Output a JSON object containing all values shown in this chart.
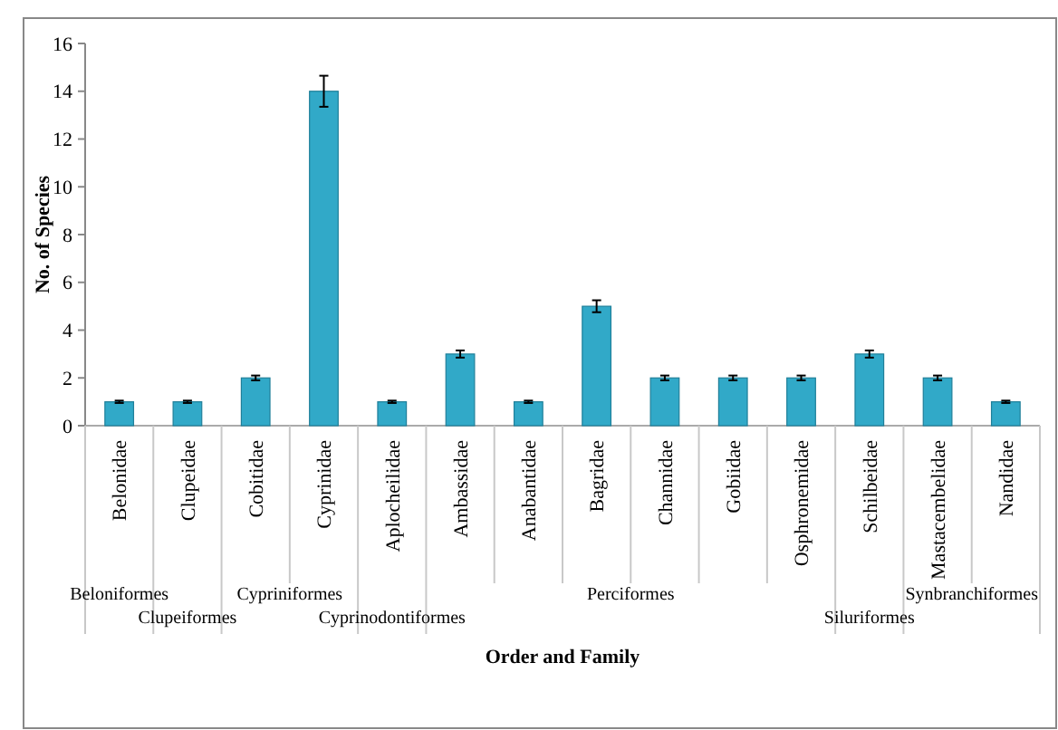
{
  "chart_data": {
    "type": "bar",
    "xlabel": "Order and Family",
    "ylabel": "No. of Species",
    "categories": [
      "Belonidae",
      "Clupeidae",
      "Cobitidae",
      "Cyprinidae",
      "Aplocheilidae",
      "Ambassidae",
      "Anabantidae",
      "Bagridae",
      "Channidae",
      "Gobiidae",
      "Osphronemidae",
      "Schilbeidae",
      "Mastacembelidae",
      "Nandidae"
    ],
    "values": [
      1,
      1,
      2,
      14,
      1,
      3,
      1,
      5,
      2,
      2,
      2,
      3,
      2,
      1
    ],
    "errors": [
      0.05,
      0.05,
      0.1,
      0.65,
      0.05,
      0.15,
      0.05,
      0.25,
      0.1,
      0.1,
      0.1,
      0.15,
      0.1,
      0.05
    ],
    "color": "#31a9c8",
    "ylim": [
      0,
      16
    ],
    "yticks": [
      0,
      2,
      4,
      6,
      8,
      10,
      12,
      14,
      16
    ],
    "grid": false,
    "annotations": [
      "Beloniformes",
      "Clupeiformes",
      "Cypriniformes",
      "Cyprinodontiformes",
      "Perciformes",
      "Siluriformes",
      "Synbranchiformes"
    ]
  }
}
